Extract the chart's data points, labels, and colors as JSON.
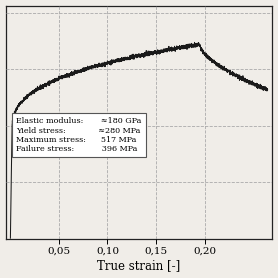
{
  "title": "",
  "xlabel": "True strain [-]",
  "ylabel": "",
  "xlim": [
    -0.005,
    0.27
  ],
  "ylim": [
    0,
    620
  ],
  "xticks": [
    0.05,
    0.1,
    0.15,
    0.2
  ],
  "xtick_labels": [
    "0,05",
    "0,10",
    "0,15",
    "0,20"
  ],
  "grid_color": "#aaaaaa",
  "line_color": "#1a1a1a",
  "background_color": "#f0ede8",
  "elastic_modulus": 180,
  "yield_stress": 280,
  "max_stress": 517,
  "failure_stress": 396,
  "noise_scale": 2.5,
  "peak_strain": 0.195,
  "failure_strain": 0.265
}
